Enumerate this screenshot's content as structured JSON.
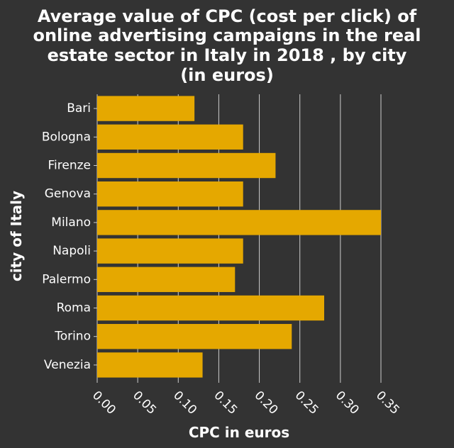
{
  "chart_data": {
    "type": "bar",
    "orientation": "horizontal",
    "title_lines": [
      "Average value of CPC (cost per click) of",
      "online advertising campaigns in the real",
      "estate sector in Italy in 2018 , by city",
      "(in euros)"
    ],
    "xlabel": "CPC in euros",
    "ylabel": "city of Italy",
    "categories": [
      "Bari",
      "Bologna",
      "Firenze",
      "Genova",
      "Milano",
      "Napoli",
      "Palermo",
      "Roma",
      "Torino",
      "Venezia"
    ],
    "values": [
      0.12,
      0.18,
      0.22,
      0.18,
      0.35,
      0.18,
      0.17,
      0.28,
      0.24,
      0.13
    ],
    "xlim": [
      0,
      0.35
    ],
    "xticks": [
      "0.00",
      "0.05",
      "0.10",
      "0.15",
      "0.20",
      "0.25",
      "0.30",
      "0.35"
    ],
    "grid": "vertical",
    "bar_color": "#e5a800",
    "grid_color": "#cccccc",
    "background_color": "#333333",
    "text_color": "#ffffff"
  }
}
